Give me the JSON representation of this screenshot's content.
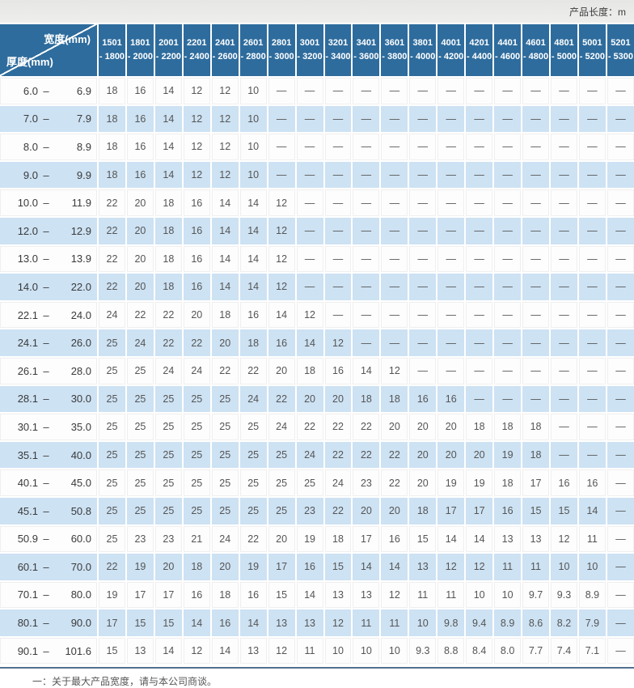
{
  "page": {
    "unit_label": "产品长度：m",
    "footnote": "一：关于最大产品宽度，请与本公司商谈。"
  },
  "colors": {
    "header_bg": "#2e6c9d",
    "alt_row_bg": "#cde2f3",
    "white_row_bg": "#fdfdfd",
    "rule": "#53718e",
    "topbar_bg": "#e9e9e7"
  },
  "table": {
    "corner": {
      "top_label": "宽度(mm)",
      "bottom_label": "厚度(mm)"
    },
    "columns": [
      [
        "1501",
        "- 1800"
      ],
      [
        "1801",
        "- 2000"
      ],
      [
        "2001",
        "- 2200"
      ],
      [
        "2201",
        "- 2400"
      ],
      [
        "2401",
        "- 2600"
      ],
      [
        "2601",
        "- 2800"
      ],
      [
        "2801",
        "- 3000"
      ],
      [
        "3001",
        "- 3200"
      ],
      [
        "3201",
        "- 3400"
      ],
      [
        "3401",
        "- 3600"
      ],
      [
        "3601",
        "- 3800"
      ],
      [
        "3801",
        "- 4000"
      ],
      [
        "4001",
        "- 4200"
      ],
      [
        "4201",
        "- 4400"
      ],
      [
        "4401",
        "- 4600"
      ],
      [
        "4601",
        "- 4800"
      ],
      [
        "4801",
        "- 5000"
      ],
      [
        "5001",
        "- 5200"
      ],
      [
        "5201",
        "- 5300"
      ]
    ],
    "rows": [
      {
        "label": "6.0 – 6.9",
        "values": [
          "18",
          "16",
          "14",
          "12",
          "12",
          "10",
          "—",
          "—",
          "—",
          "—",
          "—",
          "—",
          "—",
          "—",
          "—",
          "—",
          "—",
          "—",
          "—"
        ]
      },
      {
        "label": "7.0 – 7.9",
        "values": [
          "18",
          "16",
          "14",
          "12",
          "12",
          "10",
          "—",
          "—",
          "—",
          "—",
          "—",
          "—",
          "—",
          "—",
          "—",
          "—",
          "—",
          "—",
          "—"
        ]
      },
      {
        "label": "8.0 – 8.9",
        "values": [
          "18",
          "16",
          "14",
          "12",
          "12",
          "10",
          "—",
          "—",
          "—",
          "—",
          "—",
          "—",
          "—",
          "—",
          "—",
          "—",
          "—",
          "—",
          "—"
        ]
      },
      {
        "label": "9.0 – 9.9",
        "values": [
          "18",
          "16",
          "14",
          "12",
          "12",
          "10",
          "—",
          "—",
          "—",
          "—",
          "—",
          "—",
          "—",
          "—",
          "—",
          "—",
          "—",
          "—",
          "—"
        ]
      },
      {
        "label": "10.0 – 11.9",
        "values": [
          "22",
          "20",
          "18",
          "16",
          "14",
          "14",
          "12",
          "—",
          "—",
          "—",
          "—",
          "—",
          "—",
          "—",
          "—",
          "—",
          "—",
          "—",
          "—"
        ]
      },
      {
        "label": "12.0 – 12.9",
        "values": [
          "22",
          "20",
          "18",
          "16",
          "14",
          "14",
          "12",
          "—",
          "—",
          "—",
          "—",
          "—",
          "—",
          "—",
          "—",
          "—",
          "—",
          "—",
          "—"
        ]
      },
      {
        "label": "13.0 – 13.9",
        "values": [
          "22",
          "20",
          "18",
          "16",
          "14",
          "14",
          "12",
          "—",
          "—",
          "—",
          "—",
          "—",
          "—",
          "—",
          "—",
          "—",
          "—",
          "—",
          "—"
        ]
      },
      {
        "label": "14.0 – 22.0",
        "values": [
          "22",
          "20",
          "18",
          "16",
          "14",
          "14",
          "12",
          "—",
          "—",
          "—",
          "—",
          "—",
          "—",
          "—",
          "—",
          "—",
          "—",
          "—",
          "—"
        ]
      },
      {
        "label": "22.1 – 24.0",
        "values": [
          "24",
          "22",
          "22",
          "20",
          "18",
          "16",
          "14",
          "12",
          "—",
          "—",
          "—",
          "—",
          "—",
          "—",
          "—",
          "—",
          "—",
          "—",
          "—"
        ]
      },
      {
        "label": "24.1 – 26.0",
        "values": [
          "25",
          "24",
          "22",
          "22",
          "20",
          "18",
          "16",
          "14",
          "12",
          "—",
          "—",
          "—",
          "—",
          "—",
          "—",
          "—",
          "—",
          "—",
          "—"
        ]
      },
      {
        "label": "26.1 – 28.0",
        "values": [
          "25",
          "25",
          "24",
          "24",
          "22",
          "22",
          "20",
          "18",
          "16",
          "14",
          "12",
          "—",
          "—",
          "—",
          "—",
          "—",
          "—",
          "—",
          "—"
        ]
      },
      {
        "label": "28.1 – 30.0",
        "values": [
          "25",
          "25",
          "25",
          "25",
          "25",
          "24",
          "22",
          "20",
          "20",
          "18",
          "18",
          "16",
          "16",
          "—",
          "—",
          "—",
          "—",
          "—",
          "—"
        ]
      },
      {
        "label": "30.1 – 35.0",
        "values": [
          "25",
          "25",
          "25",
          "25",
          "25",
          "25",
          "24",
          "22",
          "22",
          "22",
          "20",
          "20",
          "20",
          "18",
          "18",
          "18",
          "—",
          "—",
          "—"
        ]
      },
      {
        "label": "35.1 – 40.0",
        "values": [
          "25",
          "25",
          "25",
          "25",
          "25",
          "25",
          "25",
          "24",
          "22",
          "22",
          "22",
          "20",
          "20",
          "20",
          "19",
          "18",
          "—",
          "—",
          "—"
        ]
      },
      {
        "label": "40.1 – 45.0",
        "values": [
          "25",
          "25",
          "25",
          "25",
          "25",
          "25",
          "25",
          "25",
          "24",
          "23",
          "22",
          "20",
          "19",
          "19",
          "18",
          "17",
          "16",
          "16",
          "—"
        ]
      },
      {
        "label": "45.1 – 50.8",
        "values": [
          "25",
          "25",
          "25",
          "25",
          "25",
          "25",
          "25",
          "23",
          "22",
          "20",
          "20",
          "18",
          "17",
          "17",
          "16",
          "15",
          "15",
          "14",
          "—"
        ]
      },
      {
        "label": "50.9 – 60.0",
        "values": [
          "25",
          "23",
          "23",
          "21",
          "24",
          "22",
          "20",
          "19",
          "18",
          "17",
          "16",
          "15",
          "14",
          "14",
          "13",
          "13",
          "12",
          "11",
          "—"
        ]
      },
      {
        "label": "60.1 – 70.0",
        "values": [
          "22",
          "19",
          "20",
          "18",
          "20",
          "19",
          "17",
          "16",
          "15",
          "14",
          "14",
          "13",
          "12",
          "12",
          "11",
          "11",
          "10",
          "10",
          "—"
        ]
      },
      {
        "label": "70.1 – 80.0",
        "values": [
          "19",
          "17",
          "17",
          "16",
          "18",
          "16",
          "15",
          "14",
          "13",
          "13",
          "12",
          "11",
          "11",
          "10",
          "10",
          "9.7",
          "9.3",
          "8.9",
          "—"
        ]
      },
      {
        "label": "80.1 – 90.0",
        "values": [
          "17",
          "15",
          "15",
          "14",
          "16",
          "14",
          "13",
          "13",
          "12",
          "11",
          "11",
          "10",
          "9.8",
          "9.4",
          "8.9",
          "8.6",
          "8.2",
          "7.9",
          "—"
        ]
      },
      {
        "label": "90.1 – 101.6",
        "values": [
          "15",
          "13",
          "14",
          "12",
          "14",
          "13",
          "12",
          "11",
          "10",
          "10",
          "10",
          "9.3",
          "8.8",
          "8.4",
          "8.0",
          "7.7",
          "7.4",
          "7.1",
          "—"
        ]
      }
    ]
  }
}
